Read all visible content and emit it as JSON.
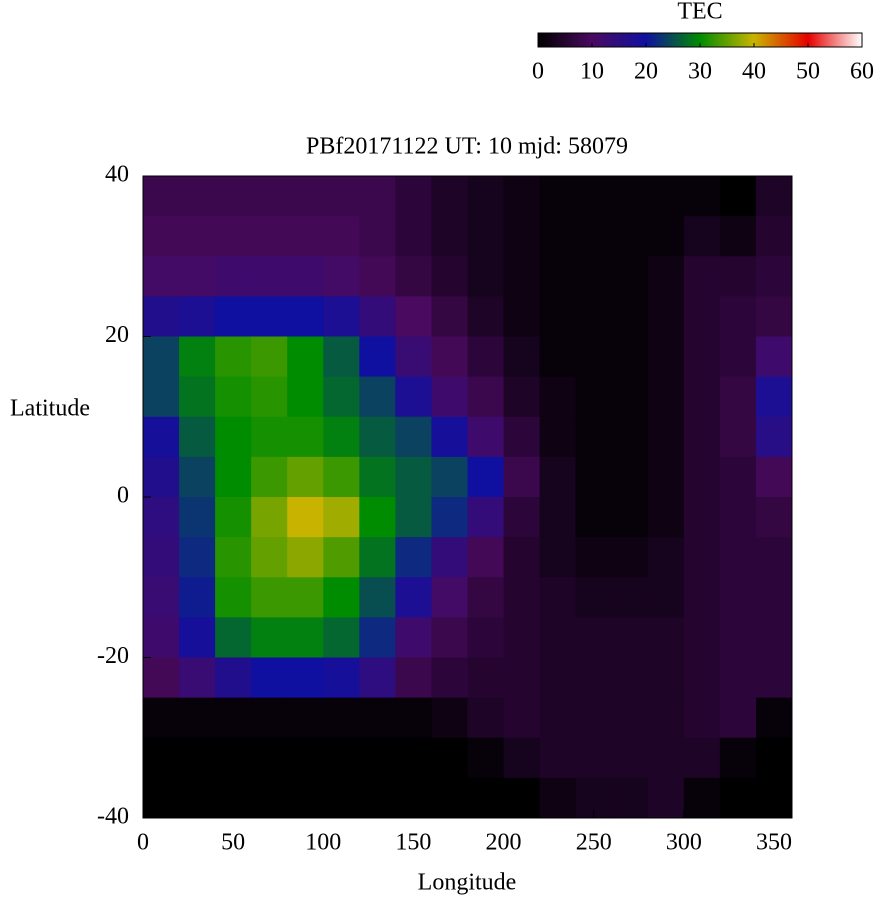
{
  "chart_data": {
    "type": "heatmap",
    "title": "PBf20171122  UT: 10  mjd: 58079",
    "x_label": "Longitude",
    "y_label": "Latitude",
    "colorbar_label": "TEC",
    "x": [
      10,
      30,
      50,
      70,
      90,
      110,
      130,
      150,
      170,
      190,
      210,
      230,
      250,
      270,
      290,
      310,
      330,
      350
    ],
    "y": [
      37.5,
      32.5,
      27.5,
      22.5,
      17.5,
      12.5,
      7.5,
      2.5,
      -2.5,
      -7.5,
      -12.5,
      -17.5,
      -22.5,
      -27.5,
      -32.5,
      -37.5
    ],
    "values": [
      [
        8,
        8,
        8,
        8,
        8,
        8,
        8,
        6,
        4,
        3,
        2,
        1,
        1,
        1,
        1,
        1,
        0,
        4
      ],
      [
        9,
        9,
        9,
        9,
        9,
        9,
        8,
        6,
        4,
        3,
        2,
        1,
        1,
        1,
        1,
        3,
        2,
        5
      ],
      [
        11,
        11,
        12,
        12,
        12,
        11,
        9,
        7,
        5,
        3,
        2,
        1,
        1,
        1,
        2,
        5,
        5,
        6
      ],
      [
        17,
        18,
        20,
        20,
        20,
        18,
        14,
        10,
        7,
        4,
        2,
        1,
        1,
        1,
        2,
        5,
        6,
        7
      ],
      [
        24,
        29,
        32,
        33,
        30,
        26,
        20,
        13,
        9,
        6,
        3,
        1,
        1,
        1,
        2,
        5,
        6,
        12
      ],
      [
        24,
        28,
        31,
        32,
        30,
        27,
        24,
        18,
        12,
        8,
        4,
        2,
        1,
        1,
        2,
        5,
        7,
        18
      ],
      [
        19,
        26,
        30,
        31,
        31,
        29,
        26,
        24,
        19,
        12,
        6,
        2,
        1,
        1,
        2,
        5,
        7,
        16
      ],
      [
        17,
        24,
        30,
        33,
        35,
        33,
        28,
        26,
        24,
        20,
        8,
        3,
        1,
        1,
        2,
        5,
        6,
        9
      ],
      [
        15,
        23,
        31,
        36,
        40,
        38,
        30,
        26,
        22,
        14,
        6,
        3,
        1,
        1,
        2,
        5,
        6,
        7
      ],
      [
        14,
        22,
        32,
        35,
        37,
        34,
        28,
        22,
        14,
        9,
        5,
        3,
        2,
        2,
        3,
        5,
        6,
        6
      ],
      [
        13,
        21,
        31,
        33,
        33,
        30,
        25,
        18,
        11,
        7,
        5,
        4,
        3,
        3,
        3,
        5,
        6,
        6
      ],
      [
        12,
        19,
        27,
        29,
        29,
        27,
        22,
        12,
        8,
        6,
        5,
        4,
        4,
        4,
        4,
        5,
        6,
        6
      ],
      [
        9,
        13,
        17,
        20,
        20,
        19,
        15,
        8,
        6,
        5,
        5,
        4,
        4,
        4,
        4,
        5,
        6,
        6
      ],
      [
        1,
        1,
        1,
        1,
        1,
        1,
        1,
        1,
        2,
        4,
        5,
        4,
        4,
        4,
        4,
        5,
        6,
        1
      ],
      [
        0,
        0,
        0,
        0,
        0,
        0,
        0,
        0,
        0,
        1,
        3,
        4,
        4,
        4,
        4,
        4,
        1,
        0
      ],
      [
        0,
        0,
        0,
        0,
        0,
        0,
        0,
        0,
        0,
        0,
        0,
        2,
        3,
        3,
        4,
        1,
        0,
        0
      ]
    ],
    "xlim": [
      0,
      360
    ],
    "xticks": [
      0,
      50,
      100,
      150,
      200,
      250,
      300,
      350
    ],
    "ylim": [
      -40,
      40
    ],
    "yticks": [
      -40,
      -20,
      0,
      20,
      40
    ],
    "clim": [
      0,
      60
    ],
    "cticks": [
      0,
      10,
      20,
      30,
      40,
      50,
      60
    ],
    "colormap": [
      "#000000",
      "#4a0a60",
      "#1010a0",
      "#008c00",
      "#c8b400",
      "#e60000",
      "#ffffff"
    ]
  }
}
